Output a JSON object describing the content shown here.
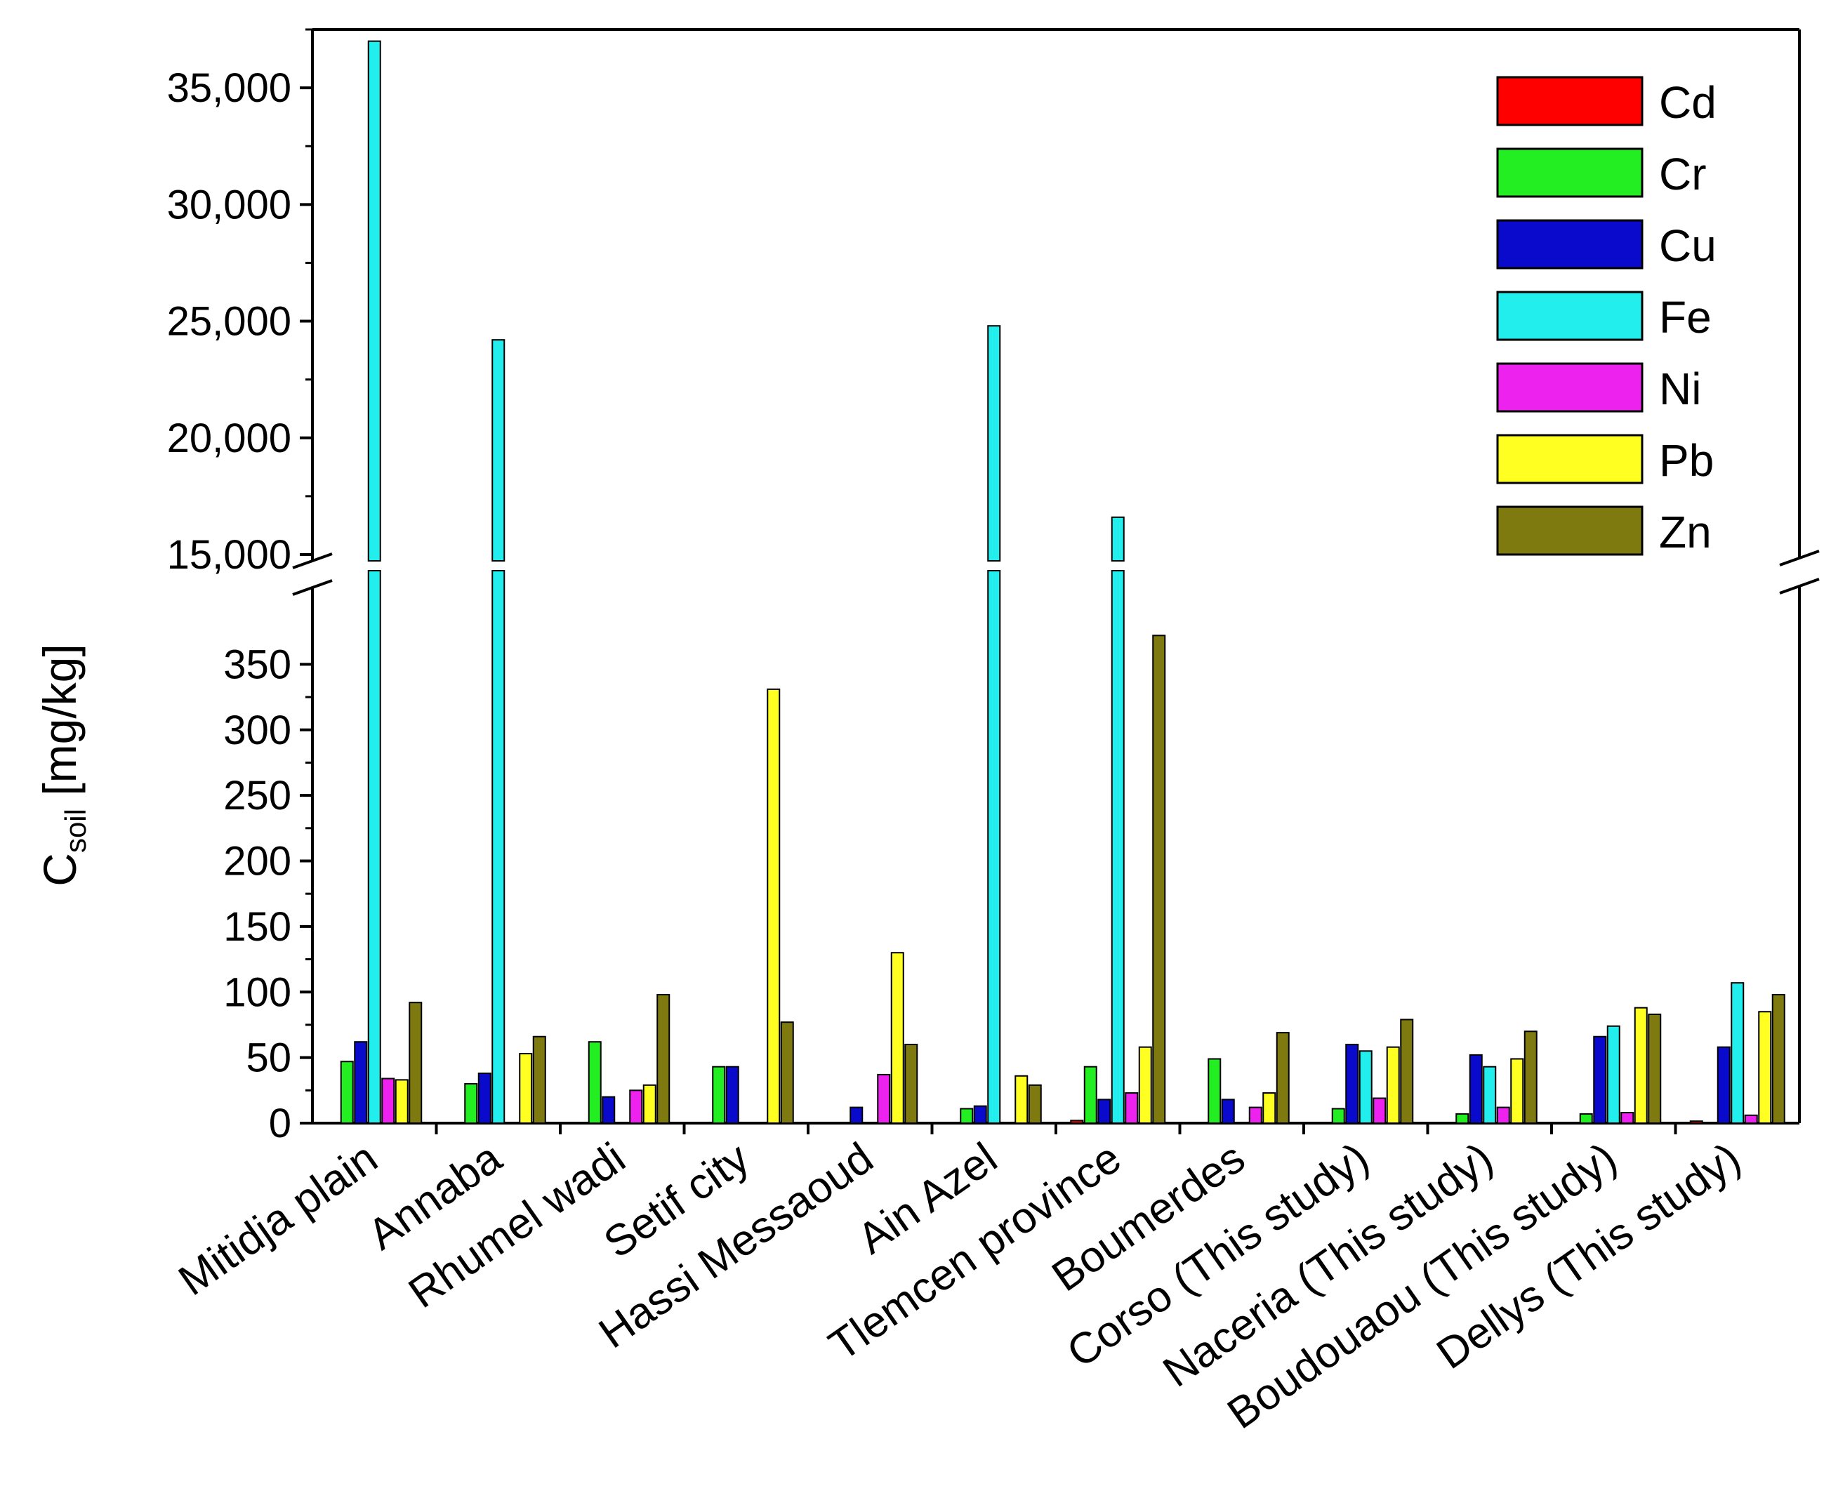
{
  "chart_data": {
    "type": "bar",
    "title": "",
    "xlabel": "",
    "ylabel": {
      "main": "C",
      "subscript": "soil",
      "unit": " [mg/kg]"
    },
    "y_axis_break": {
      "lower_range": [
        0,
        400
      ],
      "upper_range": [
        15000,
        37500
      ]
    },
    "lower_ticks": [
      "0",
      "50",
      "100",
      "150",
      "200",
      "250",
      "300",
      "350"
    ],
    "lower_tick_values": [
      0,
      50,
      100,
      150,
      200,
      250,
      300,
      350
    ],
    "upper_ticks": [
      "15,000",
      "20,000",
      "25,000",
      "30,000",
      "35,000"
    ],
    "upper_tick_values": [
      15000,
      20000,
      25000,
      30000,
      35000
    ],
    "legend_position": "top-right",
    "categories": [
      "Mitidja plain",
      "Annaba",
      "Rhumel wadi",
      "Setif city",
      "Hassi Messaoud",
      "Ain Azel",
      "Tlemcen province",
      "Boumerdes",
      "Corso (This study)",
      "Naceria (This study)",
      "Boudouaou (This study)",
      "Dellys (This study)"
    ],
    "series": [
      {
        "name": "Cd",
        "color": "#ff0000",
        "values": [
          0,
          0,
          0,
          0,
          0,
          0,
          2,
          0,
          0,
          0,
          0,
          1.5
        ]
      },
      {
        "name": "Cr",
        "color": "#22ee22",
        "values": [
          47,
          30,
          62,
          43,
          0,
          11,
          43,
          49,
          11,
          7,
          7,
          0
        ]
      },
      {
        "name": "Cu",
        "color": "#0a0acc",
        "values": [
          62,
          38,
          20,
          43,
          12,
          13,
          18,
          18,
          60,
          52,
          66,
          58
        ]
      },
      {
        "name": "Fe",
        "color": "#22eeee",
        "values": [
          37000,
          24200,
          0,
          0,
          0,
          24800,
          16600,
          0,
          55,
          43,
          74,
          107
        ]
      },
      {
        "name": "Ni",
        "color": "#ee22ee",
        "values": [
          34,
          0,
          25,
          0,
          37,
          0,
          23,
          12,
          19,
          12,
          8,
          6
        ]
      },
      {
        "name": "Pb",
        "color": "#ffff22",
        "values": [
          33,
          53,
          29,
          331,
          130,
          36,
          58,
          23,
          58,
          49,
          88,
          85
        ]
      },
      {
        "name": "Zn",
        "color": "#7f7a0f",
        "values": [
          92,
          66,
          98,
          77,
          60,
          29,
          372,
          69,
          79,
          70,
          83,
          98
        ]
      }
    ]
  }
}
